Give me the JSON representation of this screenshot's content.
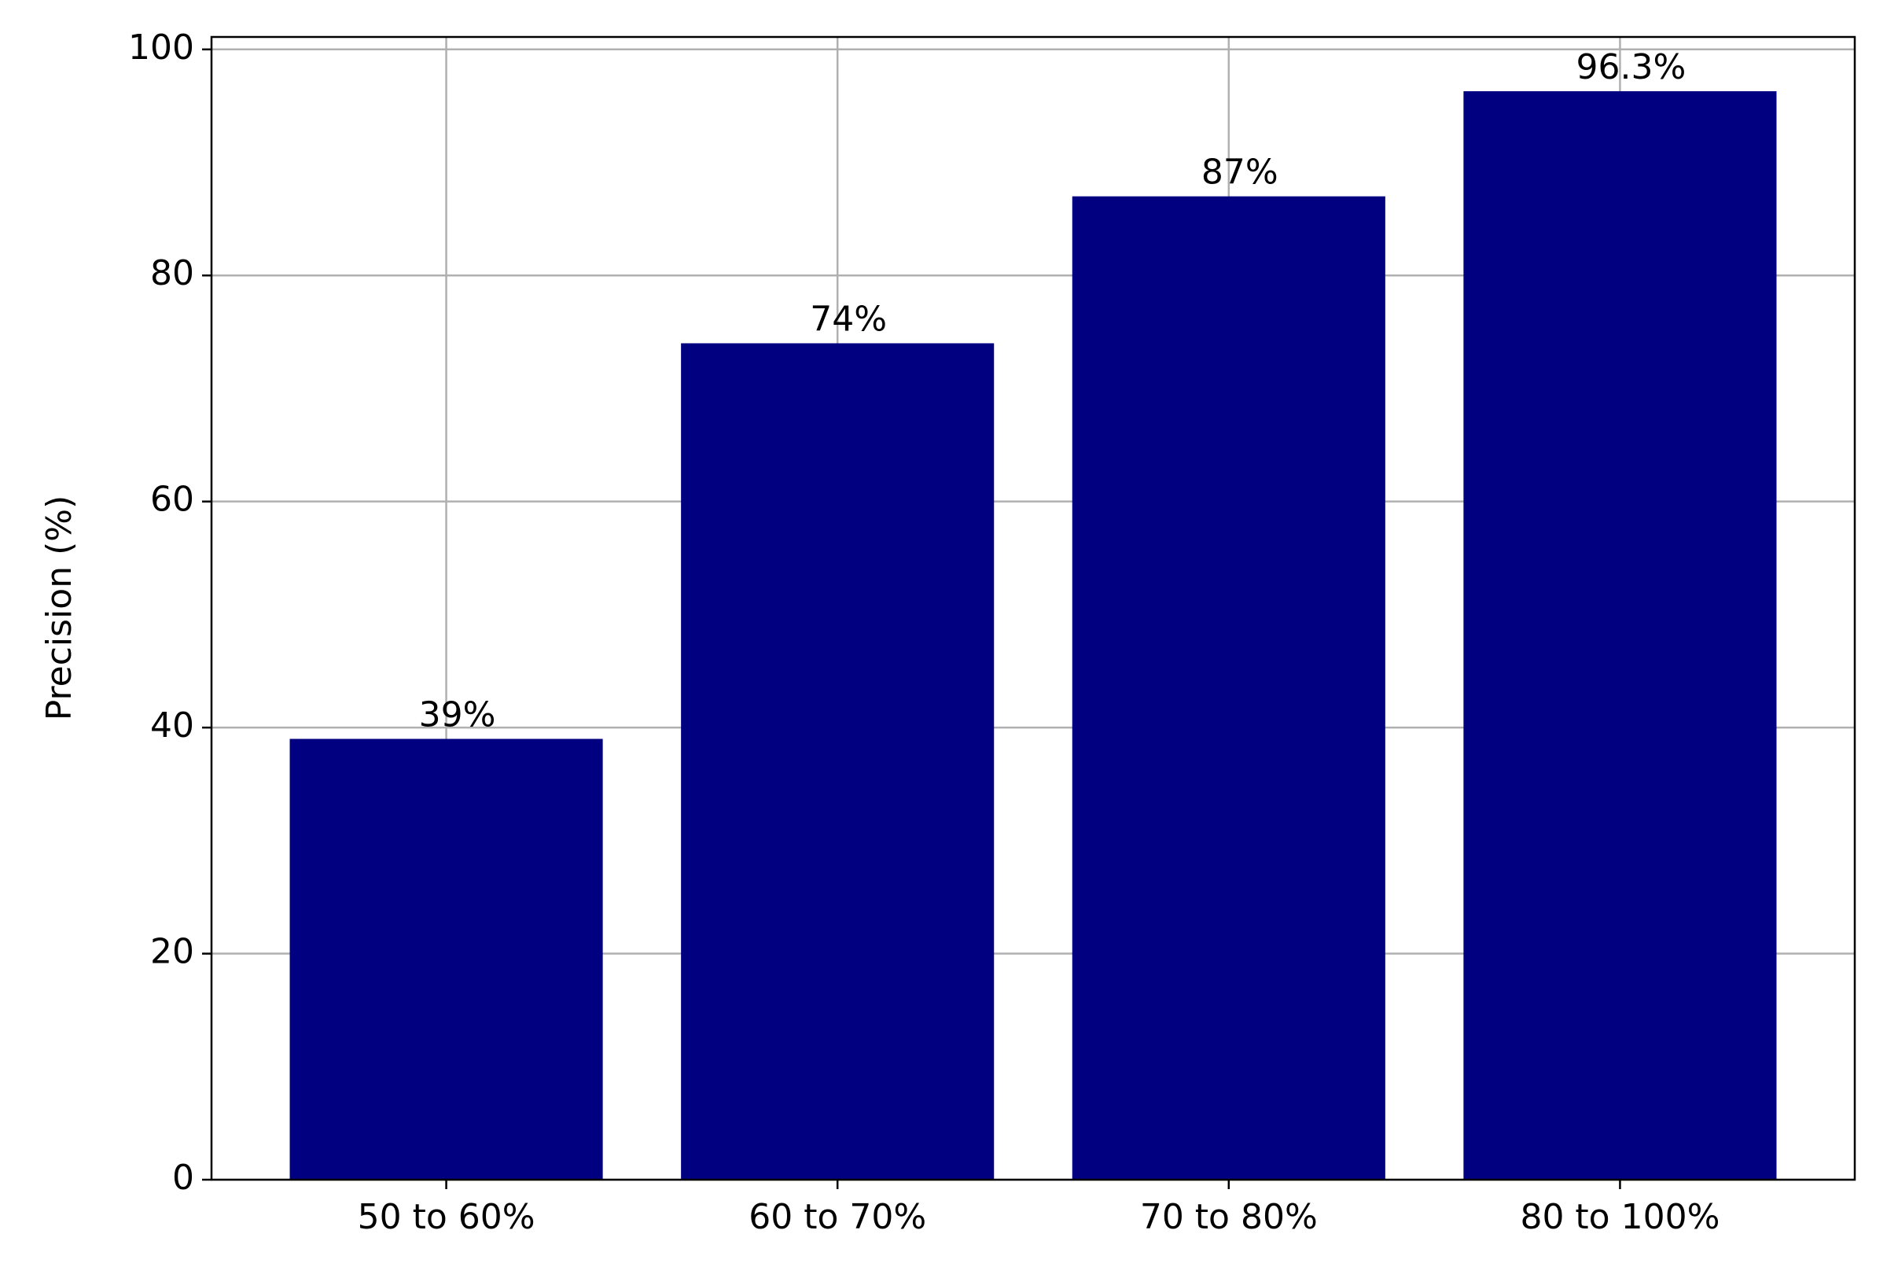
{
  "chart_data": {
    "type": "bar",
    "y_label": "Precision (%)",
    "categories": [
      "50 to 60%",
      "60 to 70%",
      "70 to 80%",
      "80 to 100%"
    ],
    "values": [
      39,
      74,
      87,
      96.3
    ],
    "value_labels": [
      "39%",
      "74%",
      "87%",
      "96.3%"
    ],
    "color": "#000080",
    "ylim": [
      0,
      101.1
    ],
    "yticks": [
      0,
      20,
      40,
      60,
      80,
      100
    ],
    "grid": true
  }
}
